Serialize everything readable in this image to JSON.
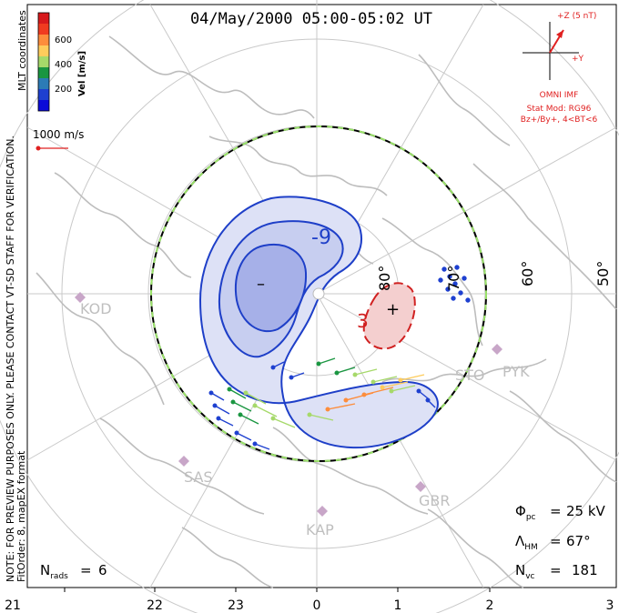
{
  "title": "04/May/2000 05:00-05:02 UT",
  "legend": {
    "ticks": [
      "600",
      "400",
      "200"
    ],
    "unit_label": "Vel [m/s]",
    "coords_label": "MLT coordinates",
    "colors": [
      "#d7191c",
      "#f03b20",
      "#fd8d3c",
      "#fecc5c",
      "#a6d96a",
      "#1a9641",
      "#2c7bb6",
      "#1e40d0",
      "#0b0bd8"
    ],
    "scale_vector_label": "1000 m/s"
  },
  "verification_note": "NOTE: FOR PREVIEW PURPOSES ONLY. PLEASE CONTACT VT-SD STAFF FOR VERIFICATION.",
  "fit_order_note": "FitOrder: 8, mapEX format",
  "imf": {
    "z_label": "+Z (5 nT)",
    "y_label": "+Y",
    "source": "OMNI IMF",
    "stat_mod": "Stat Mod: RG96",
    "condition": "Bz+/By+, 4<BT<6",
    "color": "#e02020"
  },
  "contours": {
    "negative_label": "-9",
    "positive_label": "3",
    "min_symbol": "–",
    "max_symbol": "+"
  },
  "latitude_labels": [
    "80°",
    "70°",
    "60°",
    "50°"
  ],
  "stations": [
    "KOD",
    "STO",
    "PYK",
    "SAS",
    "KAP",
    "GBR"
  ],
  "mlt_ticks": [
    "21",
    "22",
    "23",
    "0",
    "1",
    "2",
    "3"
  ],
  "stats": {
    "phi_pc": "25 kV",
    "lambda_hm": "67°",
    "n_vc": "181",
    "n_rads": "6"
  },
  "stats_labels": {
    "phi": "Φ",
    "phi_sub": "pc",
    "lambda": "Λ",
    "lambda_sub": "HM",
    "nvc": "N",
    "nvc_sub": "vc",
    "nrads": "N",
    "nrads_sub": "rads"
  }
}
